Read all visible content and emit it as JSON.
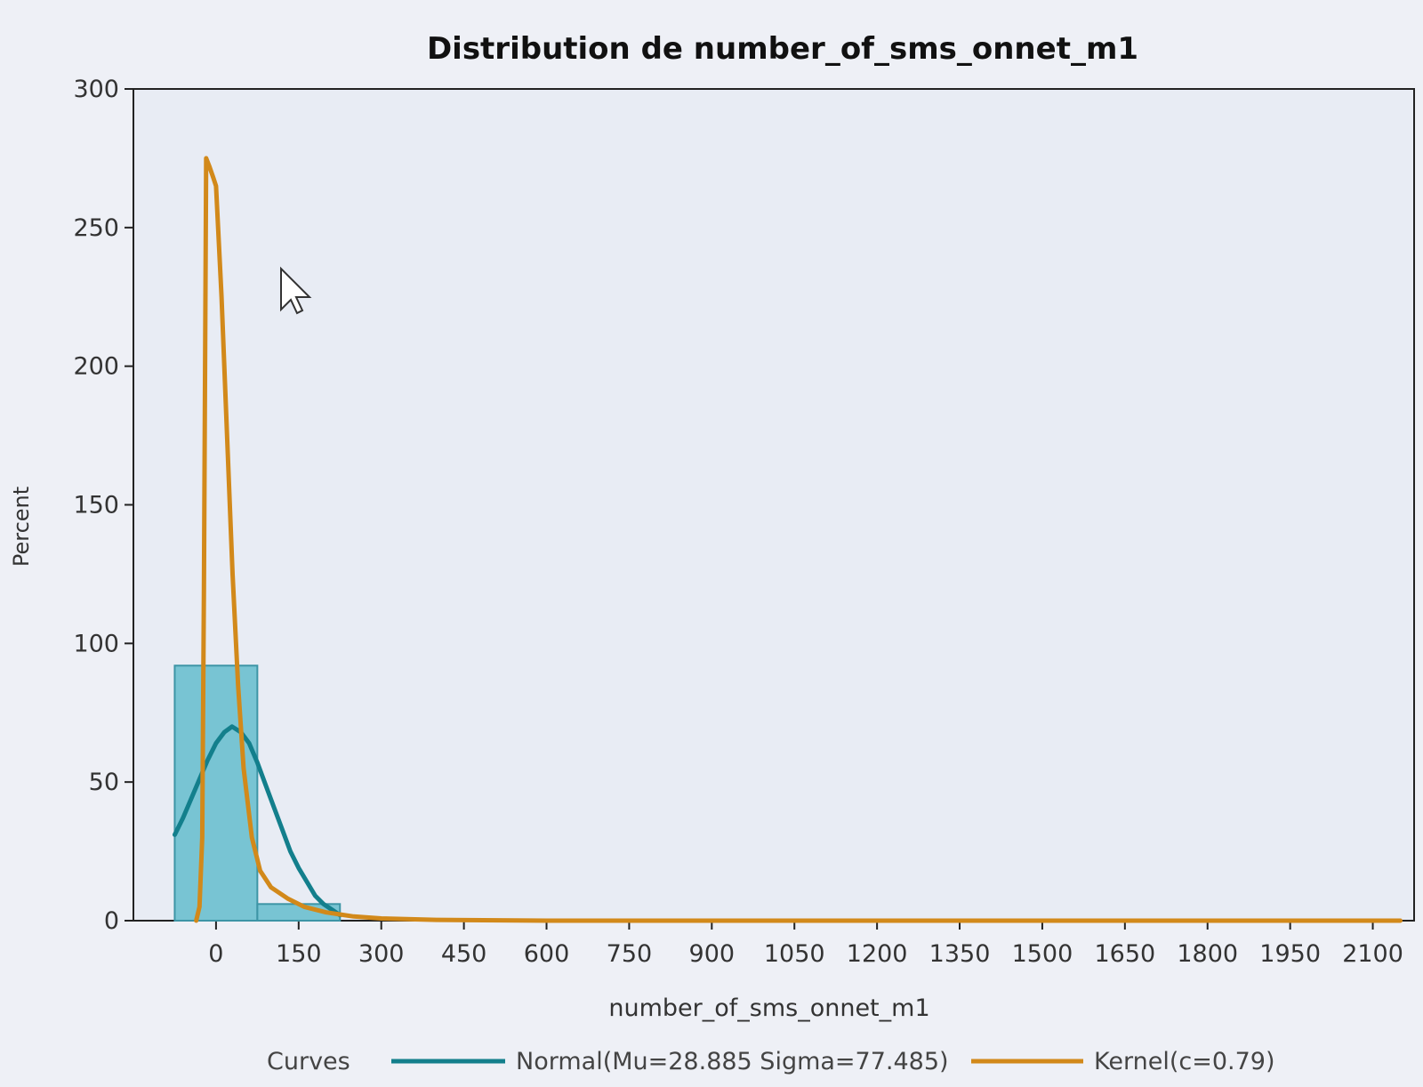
{
  "chart_data": {
    "type": "bar",
    "title": "Distribution de number_of_sms_onnet_m1",
    "xlabel": "number_of_sms_onnet_m1",
    "ylabel": "Percent",
    "xlim": [
      -150,
      2175
    ],
    "ylim": [
      0,
      300
    ],
    "x_ticks": [
      0,
      150,
      300,
      450,
      600,
      750,
      900,
      1050,
      1200,
      1350,
      1500,
      1650,
      1800,
      1950,
      2100
    ],
    "y_ticks": [
      0,
      50,
      100,
      150,
      200,
      250,
      300
    ],
    "histogram": {
      "bin_width": 150,
      "bins": [
        {
          "x": 0,
          "value": 92
        },
        {
          "x": 150,
          "value": 6
        }
      ]
    },
    "series": [
      {
        "name": "Normal(Mu=28.885 Sigma=77.485)",
        "type": "line",
        "color": "#137f8c",
        "x": [
          -75,
          -60,
          -45,
          -30,
          -15,
          0,
          15,
          29,
          45,
          60,
          75,
          90,
          105,
          120,
          135,
          150,
          165,
          180,
          195,
          210,
          225
        ],
        "values": [
          31,
          37,
          44,
          51,
          58,
          64,
          68,
          70,
          68,
          64,
          57,
          49,
          41,
          33,
          25,
          19,
          14,
          9,
          6,
          4,
          2
        ]
      },
      {
        "name": "Kernel(c=0.79)",
        "type": "line",
        "color": "#d2891a",
        "x": [
          -36,
          -30,
          -25,
          -22,
          -18,
          -12,
          -5,
          0,
          10,
          20,
          30,
          40,
          50,
          65,
          80,
          100,
          130,
          160,
          200,
          250,
          300,
          400,
          600,
          900,
          1200,
          1500,
          1800,
          2100,
          2150
        ],
        "values": [
          0,
          5,
          30,
          120,
          275,
          272,
          268,
          265,
          225,
          175,
          125,
          85,
          55,
          30,
          18,
          12,
          8,
          5,
          3,
          1.5,
          0.8,
          0.3,
          0,
          0,
          0,
          0,
          0,
          0,
          0
        ]
      }
    ],
    "legend": {
      "title": "Curves",
      "placement": "bottom",
      "entries": [
        "Normal(Mu=28.885 Sigma=77.485)",
        "Kernel(c=0.79)"
      ]
    },
    "grid": false,
    "colors": {
      "bar_fill": "#6cc0cf",
      "bar_stroke": "#3d95a6",
      "plot_background": "#e8ecf4",
      "page_background": "#eef0f6"
    }
  }
}
